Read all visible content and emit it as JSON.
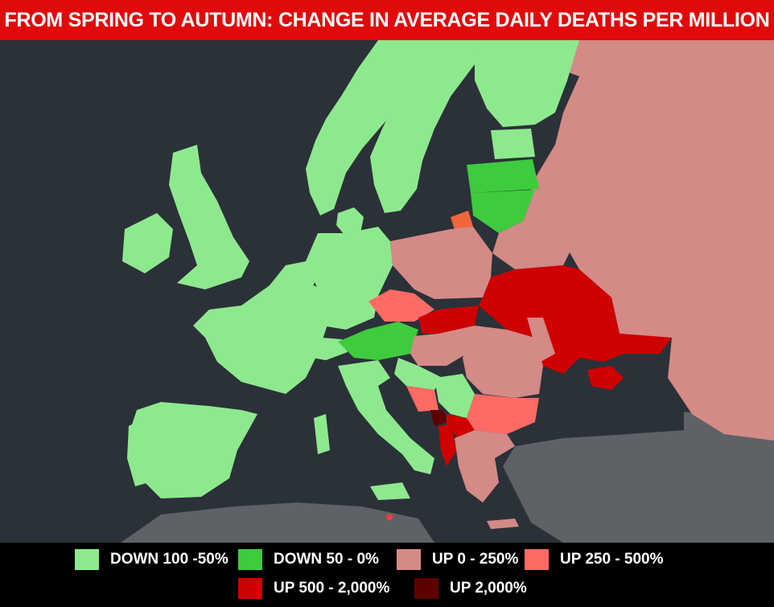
{
  "title": "FROM SPRING TO AUTUMN: CHANGE IN AVERAGE DAILY DEATHS PER MILLION",
  "colors": {
    "title_bg": "#e00a0a",
    "sea": "#2b3138",
    "land_outside": "#5e6166",
    "down_100_50": "#8ee98e",
    "down_50_0": "#3ecb3e",
    "up_0_250": "#d48a87",
    "up_250_500": "#ff6a64",
    "up_500_2000": "#cf0000",
    "up_2000": "#5e0000",
    "kaliningrad": "#f2663c",
    "malta": "#ff3b3b"
  },
  "legend": [
    {
      "label": "DOWN 100 -50%",
      "color": "#8ee98e"
    },
    {
      "label": "DOWN 50 - 0%",
      "color": "#3ecb3e"
    },
    {
      "label": "UP 0 - 250%",
      "color": "#d48a87"
    },
    {
      "label": "UP 250 - 500%",
      "color": "#ff6a64"
    },
    {
      "label": "UP 500 - 2,000%",
      "color": "#cf0000"
    },
    {
      "label": "UP 2,000%",
      "color": "#5e0000"
    }
  ]
}
